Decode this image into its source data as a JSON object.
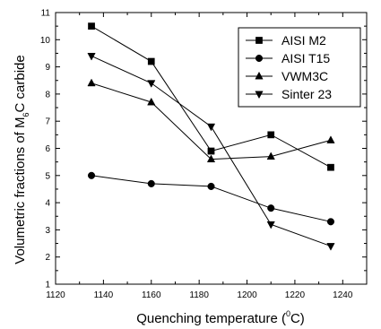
{
  "chart_data": {
    "type": "line",
    "x": [
      1135,
      1160,
      1185,
      1210,
      1235
    ],
    "xlim": [
      1120,
      1250
    ],
    "ylim": [
      1,
      11
    ],
    "xticks": [
      1120,
      1140,
      1160,
      1180,
      1200,
      1220,
      1240
    ],
    "yticks": [
      1,
      2,
      3,
      4,
      5,
      6,
      7,
      8,
      9,
      10,
      11
    ],
    "xlabel_main": "Quenching temperature (",
    "xlabel_sup": "0",
    "xlabel_tail": "C)",
    "ylabel_main": "Volumetric fractions of  M",
    "ylabel_sub": "6",
    "ylabel_tail": "C carbide",
    "legend_position": "top-right",
    "grid": false,
    "series": [
      {
        "name": "AISI M2",
        "marker": "square",
        "values": [
          10.5,
          9.2,
          5.9,
          6.5,
          5.3
        ]
      },
      {
        "name": "AISI T15",
        "marker": "circle",
        "values": [
          5.0,
          4.7,
          4.6,
          3.8,
          3.3
        ]
      },
      {
        "name": "VWM3C",
        "marker": "triangle-up",
        "values": [
          8.4,
          7.7,
          5.6,
          5.7,
          6.3
        ]
      },
      {
        "name": "Sinter 23",
        "marker": "triangle-down",
        "values": [
          9.4,
          8.4,
          6.8,
          3.2,
          2.4
        ]
      }
    ]
  }
}
